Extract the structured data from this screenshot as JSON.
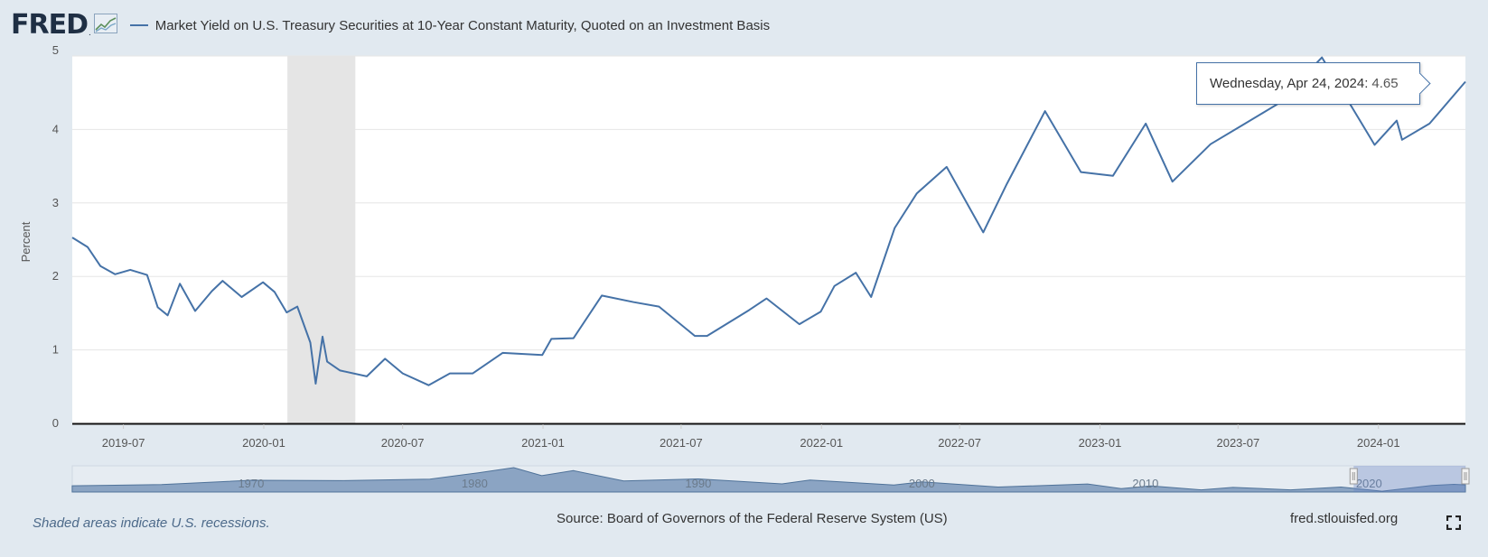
{
  "header": {
    "logo_text": "FRED",
    "logo_mark": ".",
    "series_title": "Market Yield on U.S. Treasury Securities at 10-Year Constant Maturity, Quoted on an Investment Basis"
  },
  "tooltip": {
    "date": "Wednesday, Apr 24, 2024:",
    "value": "4.65"
  },
  "footer": {
    "recession_note": "Shaded areas indicate U.S. recessions.",
    "source": "Source: Board of Governors of the Federal Reserve System (US)",
    "site": "fred.stlouisfed.org"
  },
  "colors": {
    "background": "#e1e9f0",
    "series_line": "#4572a7",
    "recession_shade": "#e5e5e5",
    "navigator_fill": "#8ba4c3"
  },
  "icons": [
    "fred-logo-graph-icon",
    "fullscreen-icon"
  ],
  "chart_data": {
    "type": "line",
    "title": "Market Yield on U.S. Treasury Securities at 10-Year Constant Maturity, Quoted on an Investment Basis",
    "xlabel": "",
    "ylabel": "Percent",
    "ylim": [
      0,
      5
    ],
    "yticks": [
      "0",
      "1",
      "2",
      "3",
      "4",
      "5"
    ],
    "x_range": [
      "2019-04-25",
      "2024-04-24"
    ],
    "xticks": [
      {
        "date": "2019-07-01",
        "label": "2019-07"
      },
      {
        "date": "2020-01-01",
        "label": "2020-01"
      },
      {
        "date": "2020-07-01",
        "label": "2020-07"
      },
      {
        "date": "2021-01-01",
        "label": "2021-01"
      },
      {
        "date": "2021-07-01",
        "label": "2021-07"
      },
      {
        "date": "2022-01-01",
        "label": "2022-01"
      },
      {
        "date": "2022-07-01",
        "label": "2022-07"
      },
      {
        "date": "2023-01-01",
        "label": "2023-01"
      },
      {
        "date": "2023-07-01",
        "label": "2023-07"
      },
      {
        "date": "2024-01-01",
        "label": "2024-01"
      }
    ],
    "recessions": [
      {
        "start": "2020-02-01",
        "end": "2020-04-30"
      }
    ],
    "grid": true,
    "legend": "top-left",
    "series": [
      {
        "name": "Market Yield on U.S. Treasury Securities at 10-Year Constant Maturity, Quoted on an Investment Basis",
        "points": [
          [
            "2019-04-25",
            2.53
          ],
          [
            "2019-05-15",
            2.4
          ],
          [
            "2019-06-01",
            2.14
          ],
          [
            "2019-06-20",
            2.03
          ],
          [
            "2019-07-10",
            2.09
          ],
          [
            "2019-08-01",
            2.02
          ],
          [
            "2019-08-15",
            1.58
          ],
          [
            "2019-08-28",
            1.47
          ],
          [
            "2019-09-13",
            1.9
          ],
          [
            "2019-10-03",
            1.53
          ],
          [
            "2019-10-25",
            1.8
          ],
          [
            "2019-11-08",
            1.94
          ],
          [
            "2019-12-03",
            1.72
          ],
          [
            "2019-12-31",
            1.92
          ],
          [
            "2020-01-15",
            1.79
          ],
          [
            "2020-01-31",
            1.51
          ],
          [
            "2020-02-14",
            1.59
          ],
          [
            "2020-03-02",
            1.1
          ],
          [
            "2020-03-09",
            0.54
          ],
          [
            "2020-03-18",
            1.18
          ],
          [
            "2020-03-24",
            0.84
          ],
          [
            "2020-04-10",
            0.72
          ],
          [
            "2020-05-15",
            0.64
          ],
          [
            "2020-06-08",
            0.88
          ],
          [
            "2020-07-01",
            0.68
          ],
          [
            "2020-08-04",
            0.52
          ],
          [
            "2020-09-01",
            0.68
          ],
          [
            "2020-10-01",
            0.68
          ],
          [
            "2020-11-09",
            0.96
          ],
          [
            "2020-12-31",
            0.93
          ],
          [
            "2021-01-12",
            1.15
          ],
          [
            "2021-02-10",
            1.16
          ],
          [
            "2021-03-19",
            1.74
          ],
          [
            "2021-04-30",
            1.65
          ],
          [
            "2021-06-02",
            1.59
          ],
          [
            "2021-07-19",
            1.19
          ],
          [
            "2021-08-04",
            1.19
          ],
          [
            "2021-09-28",
            1.54
          ],
          [
            "2021-10-21",
            1.7
          ],
          [
            "2021-12-03",
            1.35
          ],
          [
            "2021-12-31",
            1.52
          ],
          [
            "2022-01-18",
            1.87
          ],
          [
            "2022-02-15",
            2.05
          ],
          [
            "2022-03-07",
            1.72
          ],
          [
            "2022-04-07",
            2.66
          ],
          [
            "2022-05-06",
            3.13
          ],
          [
            "2022-06-14",
            3.49
          ],
          [
            "2022-08-01",
            2.6
          ],
          [
            "2022-09-01",
            3.26
          ],
          [
            "2022-10-21",
            4.25
          ],
          [
            "2022-12-07",
            3.42
          ],
          [
            "2023-01-18",
            3.37
          ],
          [
            "2023-03-02",
            4.08
          ],
          [
            "2023-04-06",
            3.29
          ],
          [
            "2023-05-26",
            3.8
          ],
          [
            "2023-07-07",
            4.06
          ],
          [
            "2023-08-21",
            4.34
          ],
          [
            "2023-10-19",
            4.98
          ],
          [
            "2023-12-27",
            3.79
          ],
          [
            "2024-01-25",
            4.12
          ],
          [
            "2024-02-01",
            3.86
          ],
          [
            "2024-03-08",
            4.08
          ],
          [
            "2024-04-24",
            4.65
          ]
        ]
      }
    ],
    "navigator": {
      "labels": [
        "1970",
        "1980",
        "1990",
        "2000",
        "2010",
        "2020"
      ],
      "range": [
        "1962-01-02",
        "2024-04-24"
      ],
      "selected": [
        "2019-04-25",
        "2024-04-24"
      ],
      "points": [
        [
          "1962-01-01",
          4.05
        ],
        [
          "1966-01-01",
          4.8
        ],
        [
          "1970-01-01",
          7.6
        ],
        [
          "1974-01-01",
          7.4
        ],
        [
          "1978-01-01",
          8.4
        ],
        [
          "1980-03-01",
          12.5
        ],
        [
          "1981-09-30",
          15.8
        ],
        [
          "1983-01-01",
          10.6
        ],
        [
          "1984-06-01",
          13.9
        ],
        [
          "1986-09-01",
          7.2
        ],
        [
          "1990-01-01",
          8.5
        ],
        [
          "1993-10-01",
          5.3
        ],
        [
          "1995-01-01",
          7.8
        ],
        [
          "1998-10-01",
          4.5
        ],
        [
          "2000-01-01",
          6.6
        ],
        [
          "2003-06-01",
          3.2
        ],
        [
          "2007-06-01",
          5.2
        ],
        [
          "2008-12-01",
          2.2
        ],
        [
          "2010-04-01",
          3.9
        ],
        [
          "2012-07-01",
          1.4
        ],
        [
          "2013-12-01",
          3.0
        ],
        [
          "2016-07-01",
          1.4
        ],
        [
          "2018-10-01",
          3.2
        ],
        [
          "2020-08-01",
          0.5
        ],
        [
          "2022-10-21",
          4.25
        ],
        [
          "2023-10-19",
          4.98
        ],
        [
          "2024-04-24",
          4.65
        ]
      ]
    }
  }
}
